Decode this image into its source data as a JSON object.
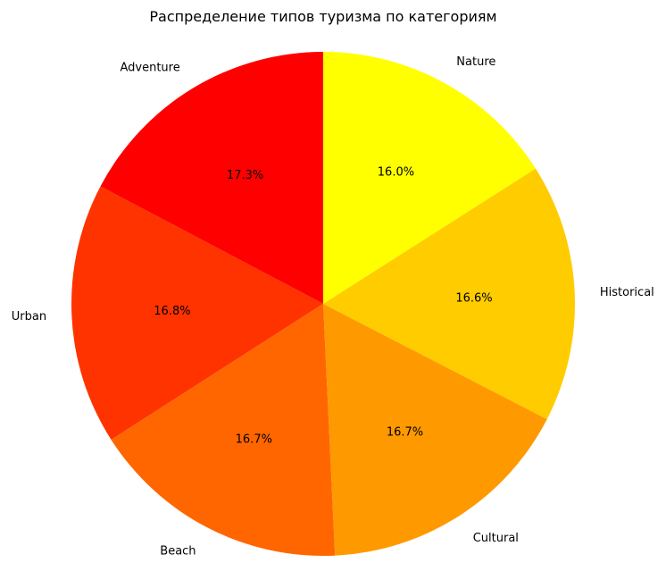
{
  "chart_data": {
    "type": "pie",
    "title": "Распределение типов туризма по категориям",
    "start_angle_deg": 90,
    "direction": "counterclockwise",
    "categories": [
      "Adventure",
      "Urban",
      "Beach",
      "Cultural",
      "Historical",
      "Nature"
    ],
    "values": [
      17.3,
      16.8,
      16.7,
      16.7,
      16.6,
      16.0
    ],
    "pct_labels": [
      "17.3%",
      "16.8%",
      "16.7%",
      "16.7%",
      "16.6%",
      "16.0%"
    ],
    "colors": [
      "#ff0000",
      "#ff3300",
      "#ff6600",
      "#ff9900",
      "#ffcc00",
      "#ffff00"
    ]
  }
}
